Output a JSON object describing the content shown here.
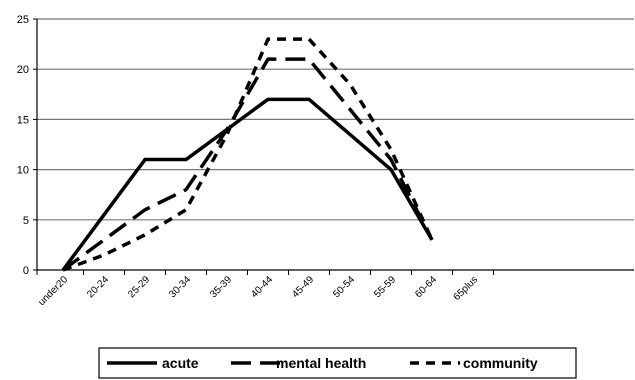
{
  "chart_data": {
    "type": "line",
    "categories": [
      "under20",
      "20-24",
      "25-29",
      "30-34",
      "35-39",
      "40-44",
      "45-49",
      "50-54",
      "55-59",
      "60-64",
      "65plus"
    ],
    "ylim": [
      0,
      25
    ],
    "yticks": [
      0,
      5,
      10,
      15,
      20,
      25
    ],
    "grid": "horizontal",
    "legend_position": "bottom",
    "series": [
      {
        "name": "acute",
        "style": "solid",
        "color": "#000000",
        "values": [
          0,
          5.5,
          11,
          11,
          14,
          17,
          17,
          13.5,
          10,
          3,
          null
        ]
      },
      {
        "name": "mental health",
        "style": "long-dash",
        "color": "#000000",
        "values": [
          0,
          3,
          6,
          8,
          14,
          21,
          21,
          16,
          11,
          3,
          null
        ]
      },
      {
        "name": "community",
        "style": "short-dash",
        "color": "#000000",
        "values": [
          0,
          1.5,
          3.5,
          6,
          13.5,
          23,
          23,
          18.5,
          12,
          3,
          null
        ]
      }
    ]
  }
}
